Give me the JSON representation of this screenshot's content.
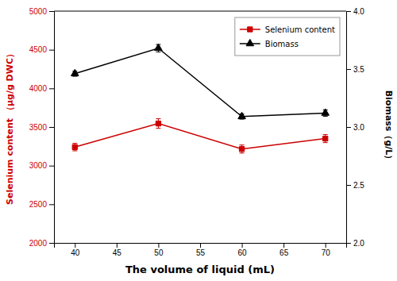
{
  "chart_data": {
    "type": "line",
    "xlabel": "The volume of liquid (mL)",
    "ylabel": "Selenium content （μg/g DWC）",
    "y2label": "Biomass（g/L）",
    "x": [
      40,
      50,
      60,
      70
    ],
    "series": [
      {
        "name": "Selenium content",
        "color": "#cc0000",
        "marker": "square",
        "values": [
          3240,
          3545,
          3215,
          3350
        ],
        "errors": [
          48,
          62,
          52,
          52
        ]
      },
      {
        "name": "Biomass",
        "color": "#000000",
        "marker": "triangle",
        "axis": "y2",
        "values": [
          3.46,
          3.68,
          3.09,
          3.12
        ],
        "errors": [
          0.022,
          0.032,
          0.022,
          0.028
        ]
      }
    ],
    "xlim": [
      37.5,
      72.5
    ],
    "xticks": [
      40,
      45,
      50,
      55,
      60,
      65,
      70
    ],
    "ylim": [
      2000,
      5000
    ],
    "yticks": [
      2000,
      2500,
      3000,
      3500,
      4000,
      4500,
      5000
    ],
    "y2lim": [
      2.0,
      4.0
    ],
    "y2ticks": [
      {
        "value": 2.0,
        "label": "2.0"
      },
      2.5,
      {
        "value": 3.0,
        "label": "3.0"
      },
      3.5,
      {
        "value": 4.0,
        "label": "4.0"
      }
    ],
    "legend": "upper right"
  }
}
